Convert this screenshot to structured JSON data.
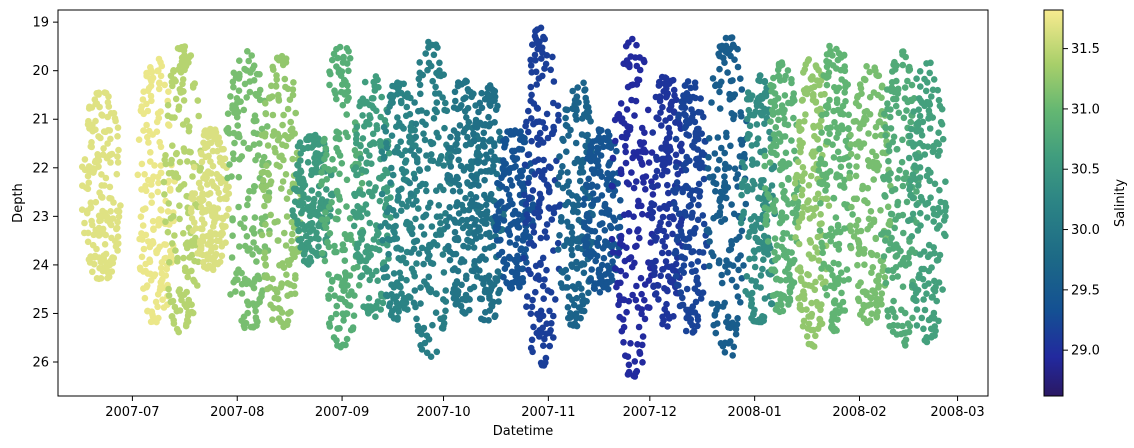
{
  "chart_data": {
    "type": "scatter",
    "xlabel": "Datetime",
    "ylabel": "Depth",
    "colorbar_label": "Salinity",
    "colormap": "haline",
    "x_ticks": [
      "2007-07",
      "2007-08",
      "2007-09",
      "2007-10",
      "2007-11",
      "2007-12",
      "2008-01",
      "2008-02",
      "2008-03"
    ],
    "x_range": [
      "2007-06-09",
      "2008-03-10"
    ],
    "y_ticks": [
      19,
      20,
      21,
      22,
      23,
      24,
      25,
      26
    ],
    "y_range": [
      26.7,
      18.75
    ],
    "y_inverted": true,
    "colorbar_ticks": [
      "29.0",
      "29.5",
      "30.0",
      "30.5",
      "31.0",
      "31.5"
    ],
    "colorbar_range": [
      28.62,
      31.82
    ],
    "grid": false,
    "series": [
      {
        "tidal_envelopes": [
          {
            "date": "2007-06-22",
            "min_depth": 20.45,
            "max_depth": 24.3,
            "salinity": 31.68
          },
          {
            "date": "2007-07-08",
            "min_depth": 19.75,
            "max_depth": 25.2,
            "salinity": 31.75
          },
          {
            "date": "2007-07-16",
            "min_depth": 19.5,
            "max_depth": 25.5,
            "salinity": 31.45
          },
          {
            "date": "2007-07-24",
            "min_depth": 21.2,
            "max_depth": 24.1,
            "salinity": 31.65
          },
          {
            "date": "2007-08-04",
            "min_depth": 19.6,
            "max_depth": 25.4,
            "salinity": 31.1
          },
          {
            "date": "2007-08-14",
            "min_depth": 19.7,
            "max_depth": 25.3,
            "salinity": 31.25
          },
          {
            "date": "2007-08-23",
            "min_depth": 21.3,
            "max_depth": 24.0,
            "salinity": 30.55
          },
          {
            "date": "2007-09-01",
            "min_depth": 19.5,
            "max_depth": 25.7,
            "salinity": 30.85
          },
          {
            "date": "2007-09-10",
            "min_depth": 20.1,
            "max_depth": 25.1,
            "salinity": 30.6
          },
          {
            "date": "2007-09-18",
            "min_depth": 20.2,
            "max_depth": 25.2,
            "salinity": 30.2
          },
          {
            "date": "2007-09-27",
            "min_depth": 19.4,
            "max_depth": 25.9,
            "salinity": 30.1
          },
          {
            "date": "2007-10-07",
            "min_depth": 20.2,
            "max_depth": 25.0,
            "salinity": 29.95
          },
          {
            "date": "2007-10-14",
            "min_depth": 20.3,
            "max_depth": 25.2,
            "salinity": 29.85
          },
          {
            "date": "2007-10-22",
            "min_depth": 21.2,
            "max_depth": 24.5,
            "salinity": 29.35
          },
          {
            "date": "2007-10-30",
            "min_depth": 19.1,
            "max_depth": 26.1,
            "salinity": 29.15
          },
          {
            "date": "2007-11-09",
            "min_depth": 20.1,
            "max_depth": 25.3,
            "salinity": 29.65
          },
          {
            "date": "2007-11-17",
            "min_depth": 21.2,
            "max_depth": 24.7,
            "salinity": 29.4
          },
          {
            "date": "2007-11-26",
            "min_depth": 19.3,
            "max_depth": 26.3,
            "salinity": 28.95
          },
          {
            "date": "2007-12-06",
            "min_depth": 20.1,
            "max_depth": 25.3,
            "salinity": 29.05
          },
          {
            "date": "2007-12-13",
            "min_depth": 20.2,
            "max_depth": 25.4,
            "salinity": 29.2
          },
          {
            "date": "2007-12-24",
            "min_depth": 19.3,
            "max_depth": 25.9,
            "salinity": 29.55
          },
          {
            "date": "2008-01-02",
            "min_depth": 20.1,
            "max_depth": 25.2,
            "salinity": 30.35
          },
          {
            "date": "2008-01-09",
            "min_depth": 19.8,
            "max_depth": 25.0,
            "salinity": 30.9
          },
          {
            "date": "2008-01-18",
            "min_depth": 19.7,
            "max_depth": 25.7,
            "salinity": 31.25
          },
          {
            "date": "2008-01-25",
            "min_depth": 19.4,
            "max_depth": 25.4,
            "salinity": 30.95
          },
          {
            "date": "2008-02-04",
            "min_depth": 19.9,
            "max_depth": 25.2,
            "salinity": 31.1
          },
          {
            "date": "2008-02-13",
            "min_depth": 19.6,
            "max_depth": 25.7,
            "salinity": 30.8
          },
          {
            "date": "2008-02-21",
            "min_depth": 19.8,
            "max_depth": 25.6,
            "salinity": 30.65
          }
        ],
        "outliers": [
          {
            "date": "2008-01-06",
            "depth": 24.8,
            "salinity": 30.3
          }
        ]
      }
    ]
  }
}
